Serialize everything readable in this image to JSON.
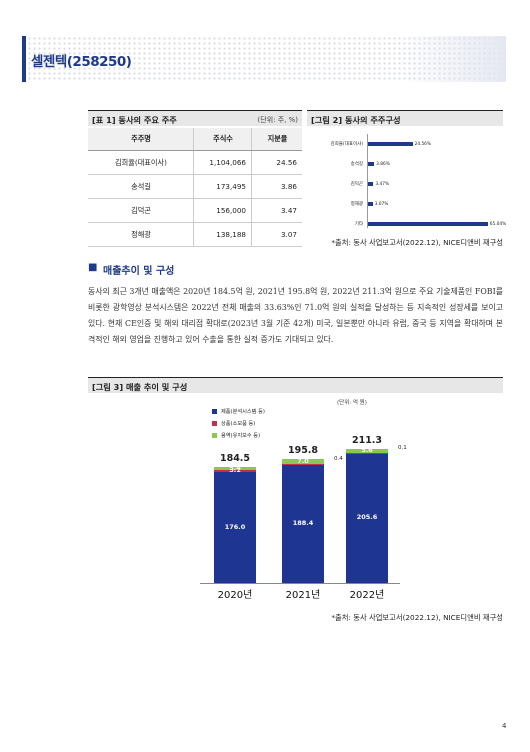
{
  "header": {
    "title": "셀젠텍(258250)"
  },
  "table1": {
    "caption": "[표 1] 동사의 주요 주주",
    "unit": "(단위: 주, %)",
    "columns": [
      "주주명",
      "주식수",
      "지분율"
    ],
    "rows": [
      [
        "김희율(대표이사)",
        "1,104,066",
        "24.56"
      ],
      [
        "송석길",
        "173,495",
        "3.86"
      ],
      [
        "김덕곤",
        "156,000",
        "3.47"
      ],
      [
        "정해광",
        "138,188",
        "3.07"
      ]
    ]
  },
  "fig2": {
    "caption": "[그림 2] 동사의 주주구성",
    "source": "*출처: 동사 사업보고서(2022.12), NICE디앤비 재구성",
    "chart_data": {
      "type": "bar",
      "orientation": "horizontal",
      "categories": [
        "김희율(대표이사)",
        "송석길",
        "김덕곤",
        "정해광",
        "기타"
      ],
      "values": [
        24.56,
        3.86,
        3.47,
        3.07,
        65.04
      ],
      "value_labels": [
        "24.56%",
        "3.86%",
        "3.47%",
        "3.07%",
        "65.04%"
      ],
      "xlim": [
        0,
        70
      ],
      "color": "#1e3a8a"
    }
  },
  "section": {
    "marker": "■",
    "title": "매출추이 및 구성"
  },
  "paragraph": "동사의 최근 3개년 매출액은 2020년 184.5억 원, 2021년 195.8억 원, 2022년 211.3억 원으로 주요 기술제품인 FOBI를 비롯한 광학영상 분석시스템은 2022년 전체 매출의 33.63%인 71.0억 원의 실적을 달성하는 등 지속적인 성장세를 보이고 있다. 현재 CE인증 및 해외 대리점 확대로(2023년 3월 기준 42개) 미국, 일본뿐만 아니라 유럽, 중국 등 지역을 확대하며 본격적인 해외 영업을 진행하고 있어 수출을 통한 실적 증가도 기대되고 있다.",
  "fig3": {
    "caption": "[그림 3] 매출 추이 및 구성",
    "unit": "(단위: 억 원)",
    "source": "*출처: 동사 사업보고서(2022.12), NICE디앤비 재구성",
    "chart_data": {
      "type": "bar",
      "stacked": true,
      "categories": [
        "2020년",
        "2021년",
        "2022년"
      ],
      "series": [
        {
          "name": "제품(분석시스템 등)",
          "values": [
            176.0,
            188.4,
            205.6
          ],
          "color": "#1e3591"
        },
        {
          "name": "상품(소모품 등)",
          "values": [
            3.1,
            0.4,
            0.1
          ],
          "color": "#c0304a"
        },
        {
          "name": "용역(유지보수 등)",
          "values": [
            5.4,
            7.0,
            5.6
          ],
          "color": "#8cc751"
        }
      ],
      "totals": [
        184.5,
        195.8,
        211.3
      ],
      "ylim": [
        0,
        240
      ]
    }
  },
  "page_number": "4"
}
